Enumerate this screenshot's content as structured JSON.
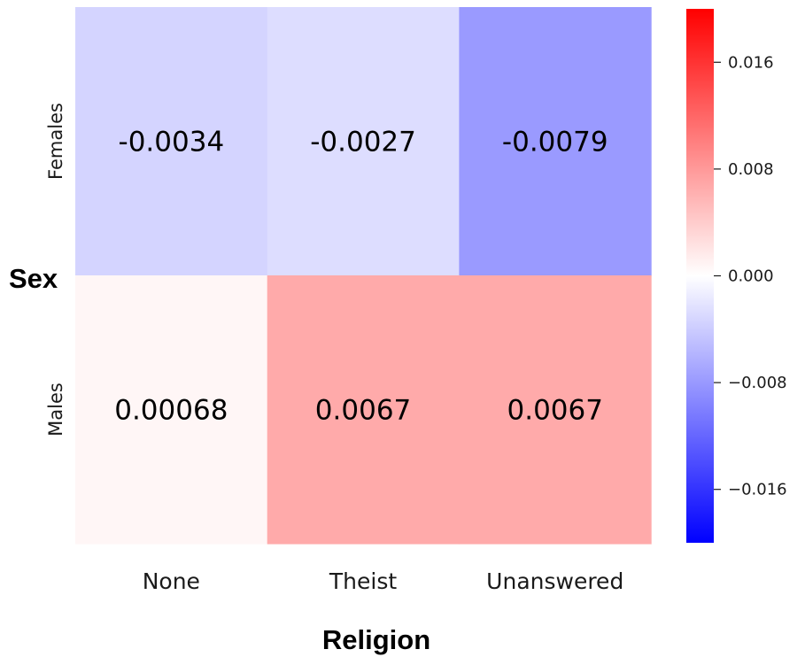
{
  "chart_data": {
    "type": "heatmap",
    "xlabel": "Religion",
    "ylabel": "Sex",
    "x_categories": [
      "None",
      "Theist",
      "Unanswered"
    ],
    "y_categories": [
      "Females",
      "Males"
    ],
    "values": [
      [
        -0.0034,
        -0.0027,
        -0.0079
      ],
      [
        0.00068,
        0.0067,
        0.0067
      ]
    ],
    "value_labels": [
      [
        "-0.0034",
        "-0.0027",
        "-0.0079"
      ],
      [
        "0.00068",
        "0.0067",
        "0.0067"
      ]
    ],
    "colormap": "bwr",
    "colors": {
      "low": "#0000ff",
      "mid": "#ffffff",
      "high": "#ff0000"
    },
    "color_range": [
      -0.02,
      0.02
    ],
    "colorbar": {
      "ticks": [
        0.016,
        0.008,
        0.0,
        -0.008,
        -0.016
      ],
      "tick_labels": [
        "0.016",
        "0.008",
        "0.000",
        "−0.008",
        "−0.016"
      ]
    }
  }
}
